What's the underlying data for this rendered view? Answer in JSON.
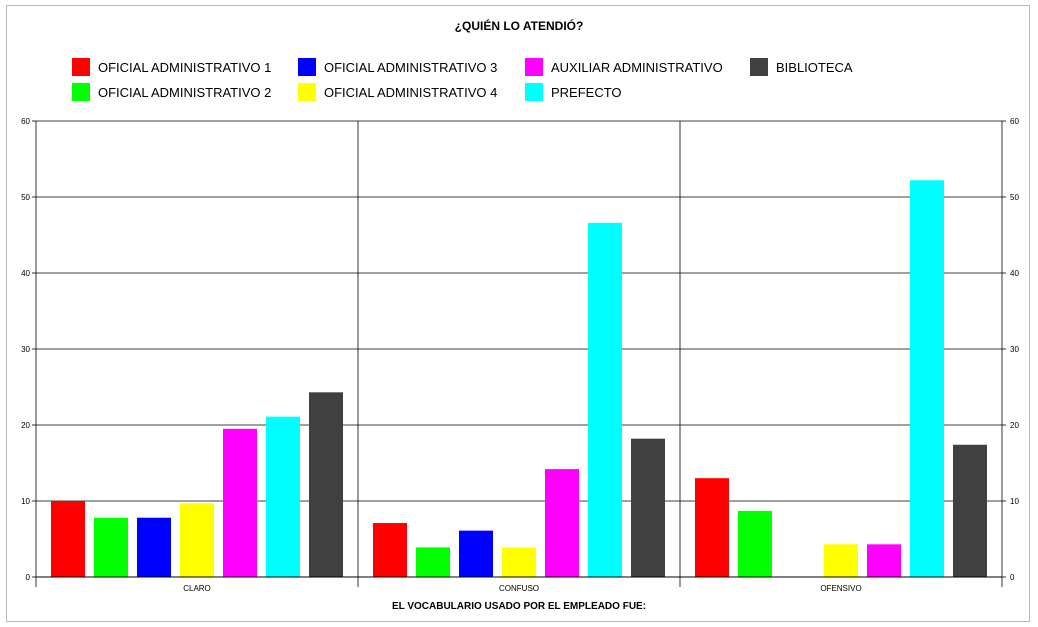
{
  "chart_data": {
    "type": "bar",
    "title": "¿QUIÉN LO ATENDIÓ?",
    "xlabel": "EL VOCABULARIO USADO POR EL EMPLEADO FUE:",
    "ylabel": "",
    "ylim": [
      0,
      60
    ],
    "yticks": [
      0,
      10,
      20,
      30,
      40,
      50,
      60
    ],
    "grid": true,
    "legend_position": "top",
    "categories": [
      "CLARO",
      "CONFUSO",
      "OFENSIVO"
    ],
    "series": [
      {
        "name": "OFICIAL ADMINISTRATIVO 1",
        "color": "#ff0000",
        "values": [
          10,
          7.1,
          13
        ]
      },
      {
        "name": "OFICIAL ADMINISTRATIVO 2",
        "color": "#00ff00",
        "values": [
          7.8,
          3.9,
          8.7
        ]
      },
      {
        "name": "OFICIAL ADMINISTRATIVO 3",
        "color": "#0000ff",
        "values": [
          7.8,
          6.1,
          0
        ]
      },
      {
        "name": "OFICIAL ADMINISTRATIVO 4",
        "color": "#ffff00",
        "values": [
          9.7,
          3.9,
          4.3
        ]
      },
      {
        "name": "AUXILIAR ADMINISTRATIVO",
        "color": "#ff00ff",
        "values": [
          19.5,
          14.2,
          4.3
        ]
      },
      {
        "name": "PREFECTO",
        "color": "#00ffff",
        "values": [
          21.1,
          46.6,
          52.2
        ]
      },
      {
        "name": "BIBLIOTECA",
        "color": "#404040",
        "values": [
          24.3,
          18.2,
          17.4
        ]
      }
    ]
  }
}
